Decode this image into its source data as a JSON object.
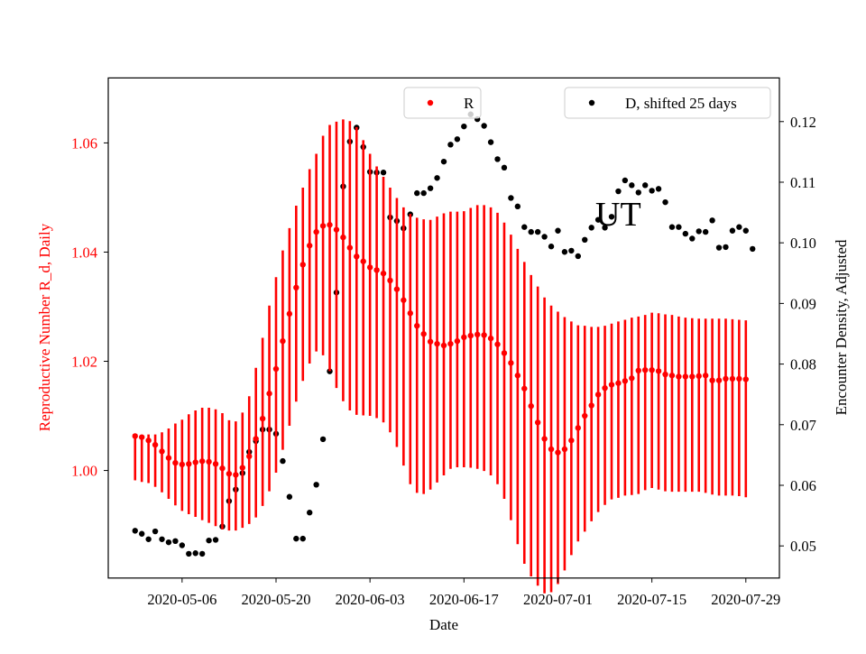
{
  "chart_data": {
    "type": "scatter",
    "xlabel": "Date",
    "ylabel_left": "Reproductive Number R_d, Daily",
    "ylabel_right": "Encounter Density, Adjusted",
    "annotation": "UT",
    "x_ticks": [
      "2020-05-06",
      "2020-05-20",
      "2020-06-03",
      "2020-06-17",
      "2020-07-01",
      "2020-07-15",
      "2020-07-29"
    ],
    "y_left_ticks": [
      "1.00",
      "1.02",
      "1.04",
      "1.06"
    ],
    "y_right_ticks": [
      "0.05",
      "0.06",
      "0.07",
      "0.08",
      "0.09",
      "0.10",
      "0.11",
      "0.12"
    ],
    "xlim": [
      "2020-04-25",
      "2020-08-03"
    ],
    "ylim_left": [
      0.9803,
      1.0719
    ],
    "ylim_right": [
      0.0447,
      0.1272
    ],
    "colors": {
      "R": "#ff0000",
      "D": "#000000",
      "axis_left": "#ff0000"
    },
    "legend": {
      "R_label": "R",
      "D_label": "D, shifted 25 days",
      "placement": "top"
    },
    "series": [
      {
        "name": "R",
        "axis": "left",
        "start_date": "2020-04-29",
        "values": [
          1.0063,
          1.0061,
          1.0055,
          1.0047,
          1.0035,
          1.0023,
          1.0014,
          1.0011,
          1.0012,
          1.0015,
          1.0017,
          1.0016,
          1.0012,
          1.0004,
          0.9994,
          0.9992,
          1.0005,
          1.0026,
          1.0058,
          1.0095,
          1.0141,
          1.0186,
          1.0237,
          1.0287,
          1.0335,
          1.0377,
          1.0412,
          1.0437,
          1.0448,
          1.045,
          1.0441,
          1.0427,
          1.0408,
          1.0392,
          1.0383,
          1.0372,
          1.0367,
          1.0361,
          1.0348,
          1.0332,
          1.0312,
          1.0288,
          1.0265,
          1.025,
          1.0236,
          1.0232,
          1.0229,
          1.0232,
          1.0237,
          1.0244,
          1.0247,
          1.0249,
          1.0248,
          1.0242,
          1.0231,
          1.0215,
          1.0197,
          1.0174,
          1.015,
          1.0118,
          1.0088,
          1.0058,
          1.0039,
          1.0033,
          1.0039,
          1.0055,
          1.0078,
          1.01,
          1.0119,
          1.0139,
          1.0151,
          1.0157,
          1.016,
          1.0164,
          1.0169,
          1.0183,
          1.0184,
          1.0184,
          1.0182,
          1.0176,
          1.0174,
          1.0172,
          1.0172,
          1.0172,
          1.0173,
          1.0174,
          1.0165,
          1.0165,
          1.0168,
          1.0168,
          1.0168,
          1.0167
        ],
        "lower": [
          0.9982,
          0.9979,
          0.9977,
          0.997,
          0.996,
          0.9948,
          0.9936,
          0.9926,
          0.992,
          0.9915,
          0.9909,
          0.9904,
          0.9898,
          0.9892,
          0.989,
          0.989,
          0.9895,
          0.9902,
          0.9914,
          0.9935,
          0.9962,
          0.9996,
          1.0038,
          1.0082,
          1.0126,
          1.0164,
          1.0196,
          1.0218,
          1.0211,
          1.0182,
          1.0151,
          1.0127,
          1.011,
          1.0102,
          1.0101,
          1.01,
          1.0096,
          1.0088,
          1.007,
          1.0043,
          1.0009,
          0.9975,
          0.9959,
          0.9957,
          0.9965,
          0.9978,
          0.9991,
          1.0003,
          1.0006,
          1.0006,
          1.0005,
          1.0003,
          0.9999,
          0.9991,
          0.9975,
          0.9948,
          0.9909,
          0.9865,
          0.9829,
          0.9806,
          0.9789,
          0.9775,
          0.9777,
          0.9792,
          0.9817,
          0.9845,
          0.987,
          0.9888,
          0.9907,
          0.9924,
          0.9937,
          0.9947,
          0.995,
          0.9954,
          0.9955,
          0.9957,
          0.9964,
          0.9968,
          0.9965,
          0.9962,
          0.9961,
          0.9961,
          0.9961,
          0.9961,
          0.9961,
          0.9959,
          0.9956,
          0.9954,
          0.9954,
          0.9954,
          0.9953,
          0.9951
        ],
        "upper": [
          1.0066,
          1.0064,
          1.0066,
          1.0066,
          1.007,
          1.0077,
          1.0086,
          1.0093,
          1.0103,
          1.011,
          1.0115,
          1.0115,
          1.0112,
          1.0105,
          1.0092,
          1.009,
          1.0106,
          1.0136,
          1.0188,
          1.0243,
          1.0302,
          1.0354,
          1.0403,
          1.0444,
          1.0485,
          1.0518,
          1.0552,
          1.058,
          1.0613,
          1.0633,
          1.0639,
          1.0643,
          1.064,
          1.0629,
          1.0605,
          1.058,
          1.0557,
          1.0538,
          1.0518,
          1.0499,
          1.0482,
          1.047,
          1.0463,
          1.046,
          1.0459,
          1.0465,
          1.0471,
          1.0474,
          1.0474,
          1.0475,
          1.0481,
          1.0486,
          1.0486,
          1.0482,
          1.0472,
          1.0454,
          1.0432,
          1.0406,
          1.0382,
          1.0358,
          1.0337,
          1.0317,
          1.0302,
          1.0291,
          1.0281,
          1.0273,
          1.0266,
          1.0265,
          1.0263,
          1.0263,
          1.0265,
          1.0269,
          1.0273,
          1.0276,
          1.028,
          1.0282,
          1.0285,
          1.0289,
          1.0288,
          1.0286,
          1.0285,
          1.0282,
          1.028,
          1.0279,
          1.0278,
          1.0278,
          1.0278,
          1.0278,
          1.0278,
          1.0277,
          1.0276,
          1.0275
        ]
      },
      {
        "name": "D, shifted 25 days",
        "axis": "right",
        "start_date": "2020-04-29",
        "values": [
          0.0525,
          0.052,
          0.0511,
          0.0524,
          0.0511,
          0.0506,
          0.0508,
          0.0501,
          0.0487,
          0.0488,
          0.0487,
          0.0509,
          0.051,
          0.0532,
          0.0574,
          0.0593,
          0.062,
          0.0655,
          0.0673,
          0.0692,
          0.0692,
          0.0685,
          0.064,
          0.0581,
          0.0512,
          0.0512,
          0.0555,
          0.0601,
          0.0676,
          0.0788,
          0.0918,
          0.1093,
          0.1167,
          0.119,
          0.1158,
          0.1117,
          0.1116,
          0.1116,
          0.1042,
          0.1036,
          0.1024,
          0.1047,
          0.1082,
          0.1082,
          0.109,
          0.1107,
          0.1134,
          0.1162,
          0.1171,
          0.1192,
          0.1212,
          0.1204,
          0.1193,
          0.1166,
          0.1138,
          0.1124,
          0.1074,
          0.106,
          0.1026,
          0.1018,
          0.1018,
          0.101,
          0.0994,
          0.102,
          0.0985,
          0.0987,
          0.0978,
          0.1005,
          0.1025,
          0.1038,
          0.1025,
          0.1043,
          0.1085,
          0.1103,
          0.1095,
          0.1083,
          0.1095,
          0.1086,
          0.1089,
          0.1067,
          0.1026,
          0.1026,
          0.1015,
          0.1007,
          0.1019,
          0.1018,
          0.1037,
          0.0992,
          0.0993,
          0.102,
          0.1026,
          0.102,
          0.099
        ]
      }
    ]
  }
}
